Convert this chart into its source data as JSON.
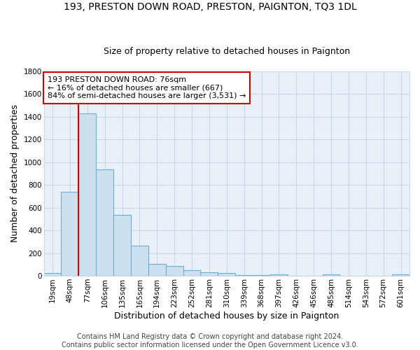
{
  "title": "193, PRESTON DOWN ROAD, PRESTON, PAIGNTON, TQ3 1DL",
  "subtitle": "Size of property relative to detached houses in Paignton",
  "xlabel": "Distribution of detached houses by size in Paignton",
  "ylabel": "Number of detached properties",
  "categories": [
    "19sqm",
    "48sqm",
    "77sqm",
    "106sqm",
    "135sqm",
    "165sqm",
    "194sqm",
    "223sqm",
    "252sqm",
    "281sqm",
    "310sqm",
    "339sqm",
    "368sqm",
    "397sqm",
    "426sqm",
    "456sqm",
    "485sqm",
    "514sqm",
    "543sqm",
    "572sqm",
    "601sqm"
  ],
  "values": [
    22,
    740,
    1430,
    935,
    535,
    265,
    103,
    88,
    48,
    28,
    23,
    7,
    4,
    15,
    3,
    3,
    12,
    0,
    0,
    0,
    12
  ],
  "bar_color": "#cce0f0",
  "bar_edge_color": "#6aaed6",
  "grid_color": "#c8d8e8",
  "bg_color": "#e8f0f8",
  "redline_color": "#cc0000",
  "redline_bar_index": 1,
  "annotation_text": "193 PRESTON DOWN ROAD: 76sqm\n← 16% of detached houses are smaller (667)\n84% of semi-detached houses are larger (3,531) →",
  "annotation_box_color": "#ffffff",
  "annotation_box_edge": "#cc0000",
  "footer": "Contains HM Land Registry data © Crown copyright and database right 2024.\nContains public sector information licensed under the Open Government Licence v3.0.",
  "ylim": [
    0,
    1800
  ],
  "yticks": [
    0,
    200,
    400,
    600,
    800,
    1000,
    1200,
    1400,
    1600,
    1800
  ],
  "title_fontsize": 10,
  "subtitle_fontsize": 9,
  "axis_label_fontsize": 9,
  "tick_fontsize": 7.5,
  "annotation_fontsize": 8,
  "footer_fontsize": 7
}
